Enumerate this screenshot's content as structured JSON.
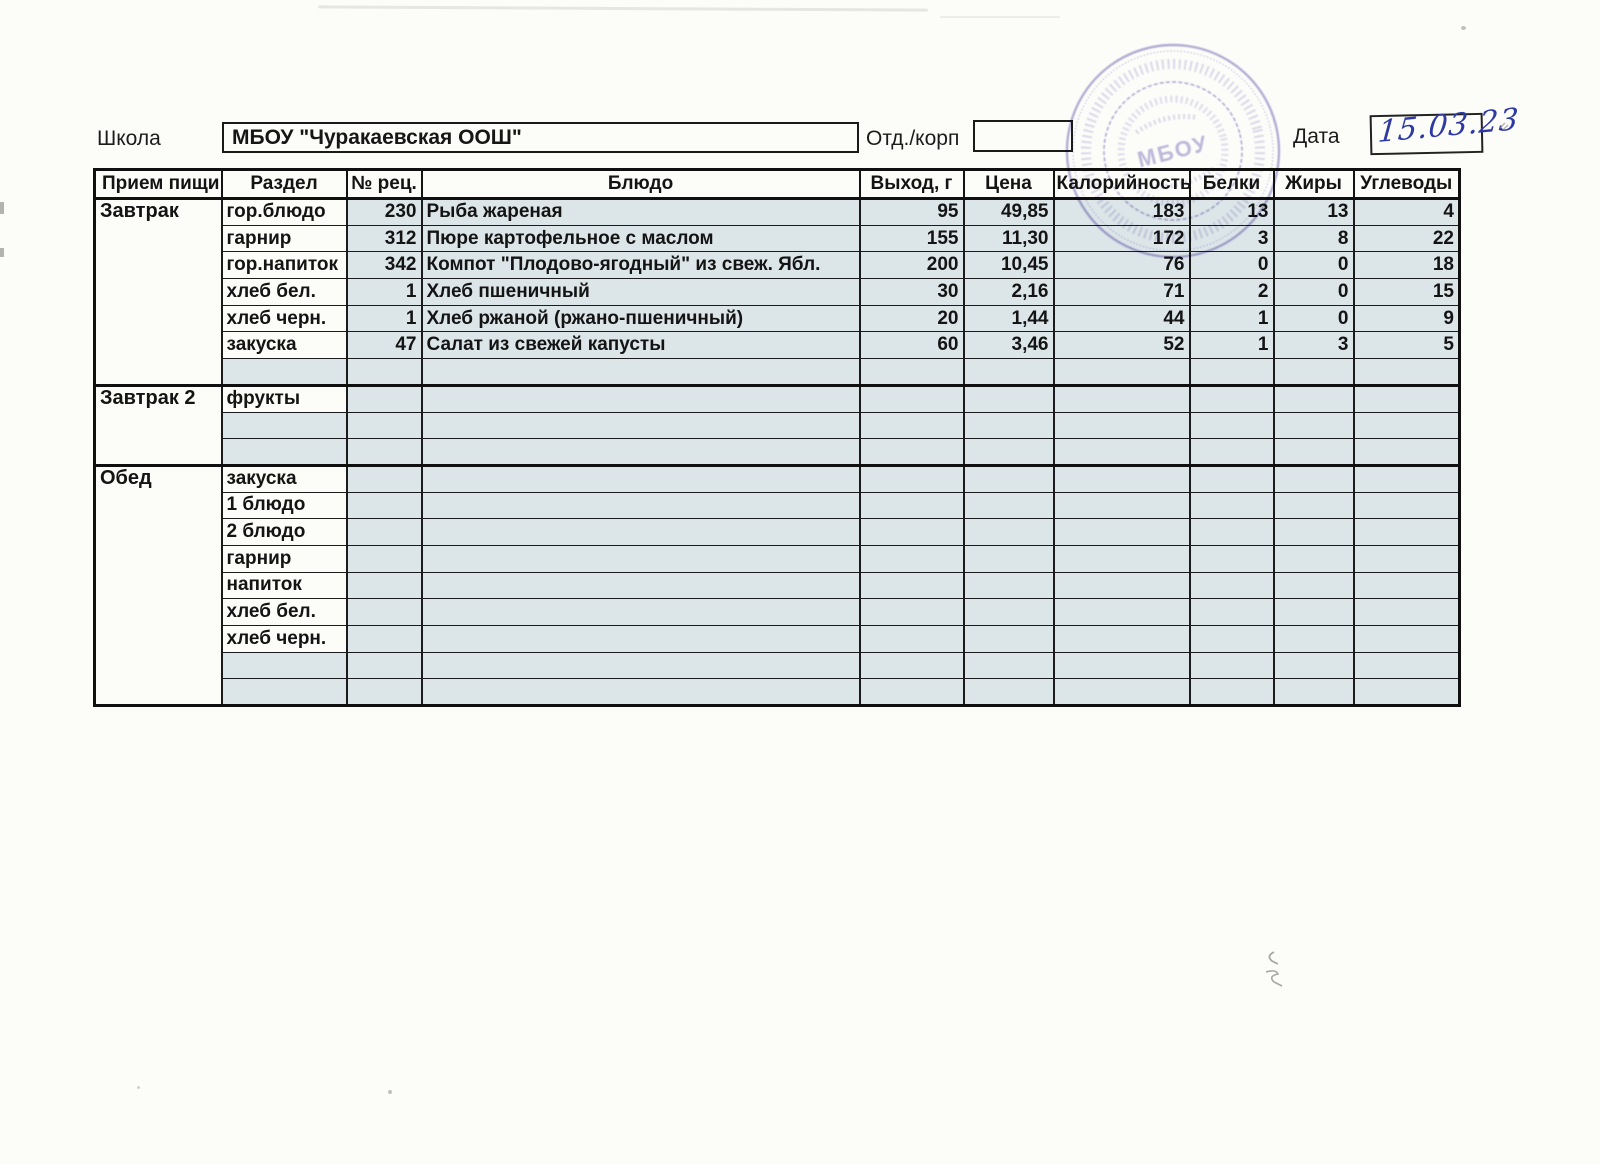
{
  "page": {
    "school_label": "Школа",
    "school_name": "МБОУ \"Чуракаевская ООШ\"",
    "dept_label": "Отд./корп",
    "dept_value": "",
    "date_label": "Дата",
    "date_value": "15.03.23"
  },
  "stamp": {
    "center_text": "МБОУ"
  },
  "colors": {
    "cell_shade": "#dce5e8",
    "stamp_purple": "#8579c1",
    "handwriting_ink": "#2e3aa4",
    "table_border": "#101010"
  },
  "table": {
    "headers": [
      "Прием пищи",
      "Раздел",
      "№ рец.",
      "Блюдо",
      "Выход, г",
      "Цена",
      "Калорийность",
      "Белки",
      "Жиры",
      "Углеводы"
    ],
    "sections": [
      {
        "meal": "Завтрак",
        "rows": [
          [
            "гор.блюдо",
            "230",
            "Рыба жареная",
            "95",
            "49,85",
            "183",
            "13",
            "13",
            "4"
          ],
          [
            "гарнир",
            "312",
            "Пюре картофельное с маслом",
            "155",
            "11,30",
            "172",
            "3",
            "8",
            "22"
          ],
          [
            "гор.напиток",
            "342",
            "Компот \"Плодово-ягодный\" из свеж. Ябл.",
            "200",
            "10,45",
            "76",
            "0",
            "0",
            "18"
          ],
          [
            "хлеб бел.",
            "1",
            "Хлеб пшеничный",
            "30",
            "2,16",
            "71",
            "2",
            "0",
            "15"
          ],
          [
            "хлеб черн.",
            "1",
            "Хлеб ржаной (ржано-пшеничный)",
            "20",
            "1,44",
            "44",
            "1",
            "0",
            "9"
          ],
          [
            "закуска",
            "47",
            "Салат из свежей капусты",
            "60",
            "3,46",
            "52",
            "1",
            "3",
            "5"
          ],
          [
            "",
            "",
            "",
            "",
            "",
            "",
            "",
            "",
            ""
          ]
        ]
      },
      {
        "meal": "Завтрак 2",
        "rows": [
          [
            "фрукты",
            "",
            "",
            "",
            "",
            "",
            "",
            "",
            ""
          ],
          [
            "",
            "",
            "",
            "",
            "",
            "",
            "",
            "",
            ""
          ],
          [
            "",
            "",
            "",
            "",
            "",
            "",
            "",
            "",
            ""
          ]
        ]
      },
      {
        "meal": "Обед",
        "rows": [
          [
            "закуска",
            "",
            "",
            "",
            "",
            "",
            "",
            "",
            ""
          ],
          [
            "1 блюдо",
            "",
            "",
            "",
            "",
            "",
            "",
            "",
            ""
          ],
          [
            "2 блюдо",
            "",
            "",
            "",
            "",
            "",
            "",
            "",
            ""
          ],
          [
            "гарнир",
            "",
            "",
            "",
            "",
            "",
            "",
            "",
            ""
          ],
          [
            "напиток",
            "",
            "",
            "",
            "",
            "",
            "",
            "",
            ""
          ],
          [
            "хлеб бел.",
            "",
            "",
            "",
            "",
            "",
            "",
            "",
            ""
          ],
          [
            "хлеб черн.",
            "",
            "",
            "",
            "",
            "",
            "",
            "",
            ""
          ],
          [
            "",
            "",
            "",
            "",
            "",
            "",
            "",
            "",
            ""
          ],
          [
            "",
            "",
            "",
            "",
            "",
            "",
            "",
            "",
            ""
          ]
        ]
      }
    ]
  }
}
